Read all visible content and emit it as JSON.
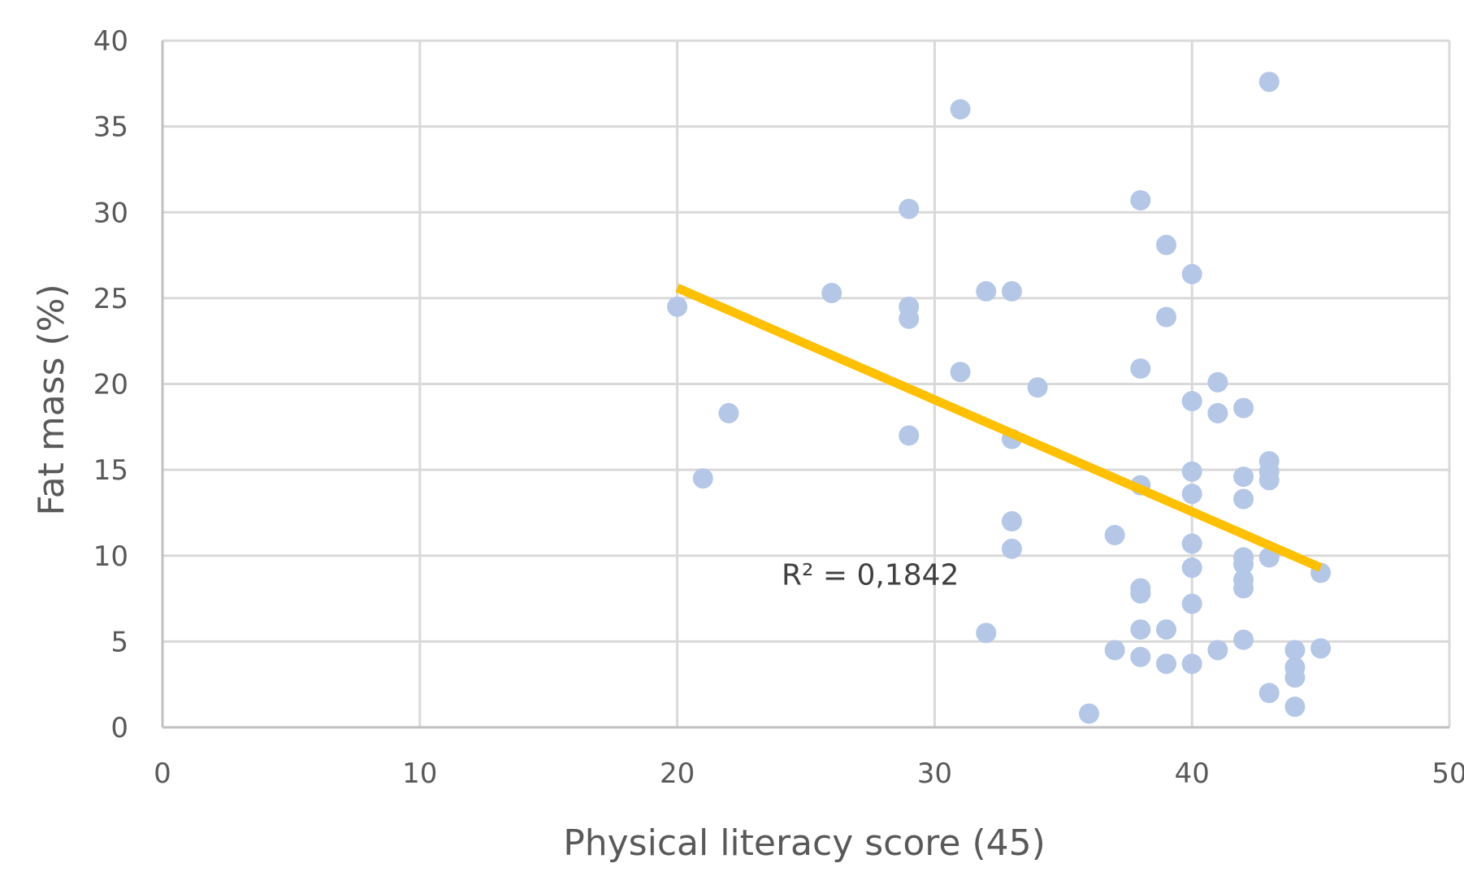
{
  "chart_data": {
    "type": "scatter",
    "xlabel": "Physical literacy score (45)",
    "ylabel": "Fat mass (%)",
    "xlim": [
      0,
      50
    ],
    "ylim": [
      0,
      40
    ],
    "x_ticks": [
      0,
      10,
      20,
      30,
      40,
      50
    ],
    "y_ticks": [
      0,
      5,
      10,
      15,
      20,
      25,
      30,
      35,
      40
    ],
    "grid": true,
    "colors": {
      "points": "#b4c7e7",
      "trendline": "#ffc000"
    },
    "series": [
      {
        "points": [
          [
            20,
            24.5
          ],
          [
            21,
            14.5
          ],
          [
            22,
            18.3
          ],
          [
            26,
            25.3
          ],
          [
            29,
            30.2
          ],
          [
            29,
            24.5
          ],
          [
            29,
            23.8
          ],
          [
            29,
            17
          ],
          [
            31,
            36
          ],
          [
            31,
            20.7
          ],
          [
            32,
            25.4
          ],
          [
            32,
            5.5
          ],
          [
            33,
            25.4
          ],
          [
            33,
            16.8
          ],
          [
            33,
            12
          ],
          [
            33,
            10.4
          ],
          [
            34,
            19.8
          ],
          [
            36,
            0.8
          ],
          [
            37,
            11.2
          ],
          [
            37,
            4.5
          ],
          [
            38,
            30.7
          ],
          [
            38,
            20.9
          ],
          [
            38,
            14.1
          ],
          [
            38,
            8.1
          ],
          [
            38,
            7.8
          ],
          [
            38,
            5.7
          ],
          [
            38,
            4.1
          ],
          [
            39,
            28.1
          ],
          [
            39,
            23.9
          ],
          [
            39,
            5.7
          ],
          [
            39,
            3.7
          ],
          [
            40,
            26.4
          ],
          [
            40,
            19
          ],
          [
            40,
            14.9
          ],
          [
            40,
            13.6
          ],
          [
            40,
            10.7
          ],
          [
            40,
            9.3
          ],
          [
            40,
            7.2
          ],
          [
            40,
            3.7
          ],
          [
            41,
            20.1
          ],
          [
            41,
            18.3
          ],
          [
            41,
            4.5
          ],
          [
            42,
            18.6
          ],
          [
            42,
            14.6
          ],
          [
            42,
            13.3
          ],
          [
            42,
            9.9
          ],
          [
            42,
            9.5
          ],
          [
            42,
            8.6
          ],
          [
            42,
            8.1
          ],
          [
            42,
            5.1
          ],
          [
            43,
            37.6
          ],
          [
            43,
            15.5
          ],
          [
            43,
            14.9
          ],
          [
            43,
            14.4
          ],
          [
            43,
            9.9
          ],
          [
            43,
            2
          ],
          [
            44,
            4.5
          ],
          [
            44,
            3.5
          ],
          [
            44,
            2.9
          ],
          [
            44,
            1.2
          ],
          [
            45,
            9
          ],
          [
            45,
            4.6
          ]
        ]
      }
    ],
    "trendline": {
      "type": "linear",
      "x_range": [
        20,
        45
      ],
      "y_at_start": 25.6,
      "y_at_end": 9.3
    },
    "annotations": [
      {
        "text": "R² = 0,1842",
        "x": 27.5,
        "y": 8.3
      }
    ]
  }
}
